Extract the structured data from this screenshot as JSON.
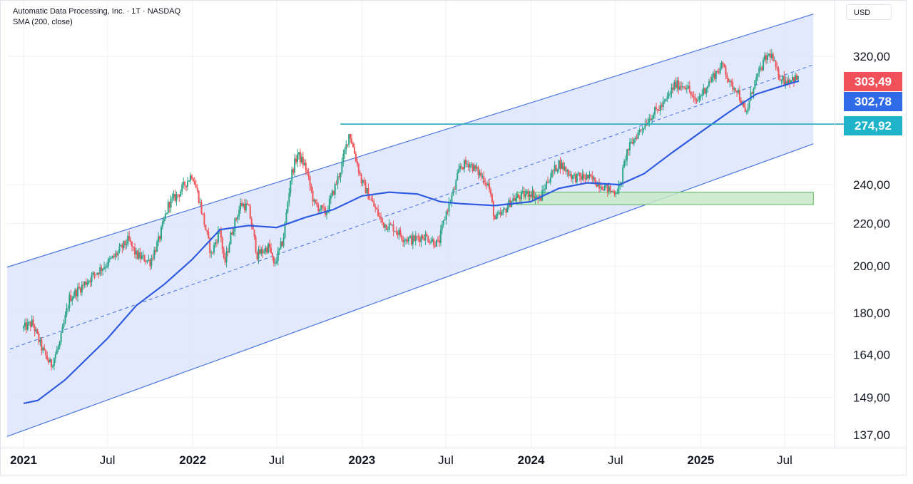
{
  "chart_data": {
    "type": "candlestick",
    "title": "Automatic Data Processing, Inc. · 1T · NASDAQ",
    "indicator": "SMA (200, close)",
    "currency": "USD",
    "y_scale": "log",
    "y_ticks": [
      "320,00",
      "240,00",
      "220,00",
      "200,00",
      "180,00",
      "164,00",
      "149,00",
      "137,00"
    ],
    "x_ticks": [
      {
        "label": "2021",
        "bold": true
      },
      {
        "label": "Jul",
        "bold": false
      },
      {
        "label": "2022",
        "bold": true
      },
      {
        "label": "Jul",
        "bold": false
      },
      {
        "label": "2023",
        "bold": true
      },
      {
        "label": "Jul",
        "bold": false
      },
      {
        "label": "2024",
        "bold": true
      },
      {
        "label": "Jul",
        "bold": false
      },
      {
        "label": "2025",
        "bold": true
      },
      {
        "label": "Jul",
        "bold": false
      }
    ],
    "price_series": {
      "name": "ADP close",
      "points": [
        [
          "2021-01-01",
          174
        ],
        [
          "2021-01-20",
          176
        ],
        [
          "2021-02-10",
          166
        ],
        [
          "2021-03-01",
          160
        ],
        [
          "2021-03-20",
          168
        ],
        [
          "2021-04-10",
          186
        ],
        [
          "2021-05-01",
          190
        ],
        [
          "2021-06-01",
          196
        ],
        [
          "2021-07-15",
          204
        ],
        [
          "2021-08-15",
          212
        ],
        [
          "2021-09-01",
          205
        ],
        [
          "2021-10-01",
          202
        ],
        [
          "2021-10-20",
          212
        ],
        [
          "2021-11-10",
          230
        ],
        [
          "2021-12-01",
          235
        ],
        [
          "2021-12-31",
          246
        ],
        [
          "2022-01-15",
          232
        ],
        [
          "2022-02-10",
          205
        ],
        [
          "2022-03-01",
          218
        ],
        [
          "2022-03-10",
          200
        ],
        [
          "2022-03-25",
          215
        ],
        [
          "2022-04-15",
          230
        ],
        [
          "2022-05-01",
          228
        ],
        [
          "2022-05-20",
          205
        ],
        [
          "2022-06-15",
          209
        ],
        [
          "2022-06-25",
          200
        ],
        [
          "2022-07-15",
          212
        ],
        [
          "2022-08-01",
          245
        ],
        [
          "2022-08-15",
          257
        ],
        [
          "2022-09-01",
          250
        ],
        [
          "2022-09-20",
          230
        ],
        [
          "2022-10-15",
          225
        ],
        [
          "2022-11-15",
          247
        ],
        [
          "2022-12-05",
          270
        ],
        [
          "2022-12-31",
          242
        ],
        [
          "2023-01-20",
          232
        ],
        [
          "2023-02-15",
          220
        ],
        [
          "2023-03-10",
          218
        ],
        [
          "2023-04-01",
          213
        ],
        [
          "2023-04-20",
          212
        ],
        [
          "2023-05-15",
          214
        ],
        [
          "2023-06-15",
          210
        ],
        [
          "2023-07-01",
          225
        ],
        [
          "2023-07-20",
          238
        ],
        [
          "2023-08-01",
          250
        ],
        [
          "2023-08-20",
          252
        ],
        [
          "2023-09-15",
          245
        ],
        [
          "2023-10-01",
          240
        ],
        [
          "2023-10-15",
          222
        ],
        [
          "2023-11-01",
          225
        ],
        [
          "2023-11-20",
          232
        ],
        [
          "2023-12-31",
          236
        ],
        [
          "2024-01-20",
          232
        ],
        [
          "2024-02-05",
          242
        ],
        [
          "2024-03-01",
          252
        ],
        [
          "2024-04-01",
          244
        ],
        [
          "2024-05-01",
          244
        ],
        [
          "2024-06-01",
          240
        ],
        [
          "2024-06-25",
          236
        ],
        [
          "2024-07-10",
          238
        ],
        [
          "2024-07-25",
          258
        ],
        [
          "2024-08-15",
          268
        ],
        [
          "2024-09-15",
          280
        ],
        [
          "2024-10-15",
          288
        ],
        [
          "2024-11-05",
          300
        ],
        [
          "2024-12-01",
          300
        ],
        [
          "2024-12-20",
          288
        ],
        [
          "2025-01-15",
          300
        ],
        [
          "2025-02-01",
          308
        ],
        [
          "2025-02-20",
          314
        ],
        [
          "2025-03-05",
          300
        ],
        [
          "2025-03-20",
          298
        ],
        [
          "2025-04-08",
          280
        ],
        [
          "2025-04-25",
          300
        ],
        [
          "2025-05-20",
          318
        ],
        [
          "2025-06-01",
          322
        ],
        [
          "2025-06-15",
          308
        ],
        [
          "2025-07-01",
          303
        ],
        [
          "2025-07-20",
          305
        ],
        [
          "2025-08-01",
          303.49
        ]
      ]
    },
    "sma_series": {
      "name": "SMA (200, close)",
      "points": [
        [
          "2021-01-01",
          147
        ],
        [
          "2021-02-01",
          148
        ],
        [
          "2021-04-01",
          155
        ],
        [
          "2021-07-01",
          170
        ],
        [
          "2021-09-01",
          183
        ],
        [
          "2021-11-01",
          192
        ],
        [
          "2021-12-31",
          203
        ],
        [
          "2022-03-01",
          217
        ],
        [
          "2022-05-01",
          219
        ],
        [
          "2022-07-01",
          218
        ],
        [
          "2022-09-01",
          223
        ],
        [
          "2022-11-01",
          227
        ],
        [
          "2023-01-01",
          234
        ],
        [
          "2023-03-01",
          236
        ],
        [
          "2023-05-01",
          235
        ],
        [
          "2023-06-20",
          231
        ],
        [
          "2023-08-01",
          230
        ],
        [
          "2023-10-15",
          229
        ],
        [
          "2023-12-31",
          231
        ],
        [
          "2024-03-01",
          238
        ],
        [
          "2024-05-01",
          241
        ],
        [
          "2024-07-10",
          240
        ],
        [
          "2024-09-01",
          246
        ],
        [
          "2024-11-01",
          258
        ],
        [
          "2025-01-01",
          270
        ],
        [
          "2025-03-01",
          282
        ],
        [
          "2025-05-01",
          294
        ],
        [
          "2025-07-01",
          300
        ],
        [
          "2025-08-01",
          302.78
        ]
      ]
    },
    "channel": {
      "upper": [
        [
          "2021-01-01",
          199.5
        ],
        [
          "2025-06-08",
          342
        ]
      ],
      "middle": [
        [
          "2021-01-01",
          166
        ],
        [
          "2025-09-01",
          314
        ]
      ],
      "lower": [
        [
          "2021-01-01",
          136.5
        ],
        [
          "2025-09-01",
          263
        ]
      ],
      "fill_color": "#dbe3fb",
      "line_color": "#4f78e3"
    },
    "horizontal_line": {
      "value": 274.92,
      "from_date": "2022-12-01",
      "color": "#22aaba"
    },
    "support_zone": {
      "from_date": "2024-01-01",
      "to_date": "2025-09-01",
      "low": 229.5,
      "high": 236,
      "color": "#c7e9c9"
    },
    "price_labels": [
      {
        "text": "303,49",
        "color": "#f0505a"
      },
      {
        "text": "302,78",
        "color": "#2f6be6"
      },
      {
        "text": "274,92",
        "color": "#1fb3c9"
      }
    ],
    "colors": {
      "up": "#2aa587",
      "down": "#ee5458",
      "sma": "#2f5be0",
      "grid": "#f0f2f5"
    }
  }
}
